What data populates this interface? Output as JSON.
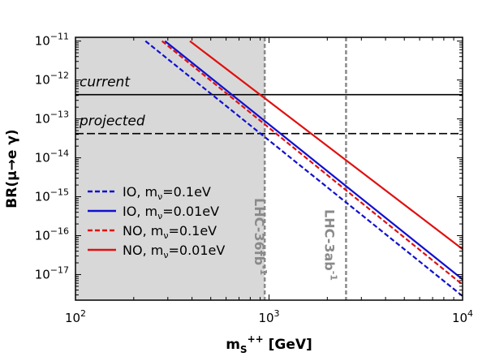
{
  "chart_data": {
    "type": "line",
    "xlabel_main": "m",
    "xlabel_sub": "S",
    "xlabel_sup": "++",
    "xlabel_unit": " [GeV]",
    "ylabel": "BR(μ→e γ)",
    "xscale": "log",
    "yscale": "log",
    "xlim": [
      100,
      10000
    ],
    "ylim": [
      2.2e-18,
      1.25e-11
    ],
    "x_ticks": [
      {
        "base": "10",
        "exp": "2",
        "value": 100
      },
      {
        "base": "10",
        "exp": "3",
        "value": 1000
      },
      {
        "base": "10",
        "exp": "4",
        "value": 10000
      }
    ],
    "y_ticks": [
      {
        "base": "10",
        "exp": "−11",
        "value": 1e-11
      },
      {
        "base": "10",
        "exp": "−12",
        "value": 1e-12
      },
      {
        "base": "10",
        "exp": "−13",
        "value": 1e-13
      },
      {
        "base": "10",
        "exp": "−14",
        "value": 1e-14
      },
      {
        "base": "10",
        "exp": "−15",
        "value": 1e-15
      },
      {
        "base": "10",
        "exp": "−16",
        "value": 1e-16
      },
      {
        "base": "10",
        "exp": "−17",
        "value": 1e-17
      }
    ],
    "shaded_region": {
      "x_from": 100,
      "x_to": 950,
      "color": "#d8d8d8"
    },
    "vlines": [
      {
        "x": 950,
        "label_main": "LHC-36fb",
        "label_sup": "-1",
        "color": "#8a8a8a"
      },
      {
        "x": 2500,
        "label_main": "LHC-3ab",
        "label_sup": "-1",
        "color": "#8a8a8a"
      }
    ],
    "hlines": [
      {
        "y": 4.2e-13,
        "label": "current",
        "style": "solid",
        "color": "#000000"
      },
      {
        "y": 4.2e-14,
        "label": "projected",
        "style": "dashed",
        "color": "#000000"
      }
    ],
    "series": [
      {
        "name_pre": "IO, m",
        "name_sub": "ν",
        "name_post": "=0.1eV",
        "color": "#1010d0",
        "dash": "dashed",
        "x": [
          230,
          10000
        ],
        "y": [
          1e-11,
          2.8e-18
        ]
      },
      {
        "name_pre": "IO, m",
        "name_sub": "ν",
        "name_post": "=0.01eV",
        "color": "#1010d0",
        "dash": "solid",
        "x": [
          290,
          10000
        ],
        "y": [
          1e-11,
          7.5e-18
        ]
      },
      {
        "name_pre": "NO, m",
        "name_sub": "ν",
        "name_post": "=0.1eV",
        "color": "#e01010",
        "dash": "dashed",
        "x": [
          280,
          10000
        ],
        "y": [
          1e-11,
          5.5e-18
        ]
      },
      {
        "name_pre": "NO, m",
        "name_sub": "ν",
        "name_post": "=0.01eV",
        "color": "#e01010",
        "dash": "solid",
        "x": [
          390,
          10000
        ],
        "y": [
          1e-11,
          4.5e-17
        ]
      }
    ],
    "legend_position": "lower-left",
    "grid": false
  }
}
